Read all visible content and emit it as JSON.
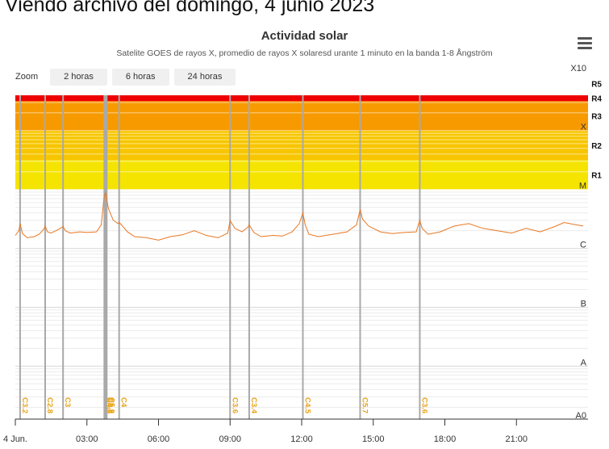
{
  "page": {
    "heading": "Viendo archivo del domingo, 4 junio 2023"
  },
  "toolbar": {
    "zoom_label": "Zoom",
    "zoom_options": [
      "2 horas",
      "6 horas",
      "24 horas"
    ],
    "menu_icon": "hamburger-menu-icon"
  },
  "chart_data": {
    "type": "line",
    "title": "Actividad solar",
    "subtitle": "Satelite GOES de rayos X, promedio de rayos X solaresd urante 1 minuto en la banda 1-8 Ångström",
    "xlabel": "",
    "ylabel": "",
    "x_unit": "hours UTC",
    "xlim": [
      0,
      24
    ],
    "x_ticks": [
      {
        "value": 0,
        "label": "4 Jun."
      },
      {
        "value": 3,
        "label": "03:00"
      },
      {
        "value": 6,
        "label": "06:00"
      },
      {
        "value": 9,
        "label": "09:00"
      },
      {
        "value": 12,
        "label": "12:00"
      },
      {
        "value": 15,
        "label": "15:00"
      },
      {
        "value": 18,
        "label": "18:00"
      },
      {
        "value": 21,
        "label": "21:00"
      }
    ],
    "y_scale": "log10 W/m²",
    "ylim": [
      -8.9,
      -3.4
    ],
    "class_labels": [
      {
        "label": "A0",
        "log": -8.9
      },
      {
        "label": "A",
        "log": -8
      },
      {
        "label": "B",
        "log": -7
      },
      {
        "label": "C",
        "log": -6
      },
      {
        "label": "M",
        "log": -5
      },
      {
        "label": "X",
        "log": -4
      },
      {
        "label": "X10",
        "log": -3
      }
    ],
    "radio_bands": [
      {
        "label": "R1",
        "from": -5.0,
        "to": -4.5,
        "color": "#f5e400"
      },
      {
        "label": "R2",
        "from": -4.5,
        "to": -4.0,
        "color": "#f7c600"
      },
      {
        "label": "R3",
        "from": -4.0,
        "to": -3.5,
        "color": "#f79a00"
      },
      {
        "label": "R4",
        "from": -3.5,
        "to": -3.0,
        "color": "#ee0000"
      },
      {
        "label": "R5",
        "from": -3.0,
        "to": -2.5,
        "color": "#c80000"
      }
    ],
    "flares": [
      {
        "time": 0.2,
        "label": "C3.2"
      },
      {
        "time": 1.25,
        "label": "C2.8"
      },
      {
        "time": 2.0,
        "label": "C3"
      },
      {
        "time": 3.73,
        "label": "C4.6"
      },
      {
        "time": 3.78,
        "label": "C8.8"
      },
      {
        "time": 3.83,
        "label": "C5.9"
      },
      {
        "time": 4.35,
        "label": "C4"
      },
      {
        "time": 9.0,
        "label": "C3.6"
      },
      {
        "time": 9.8,
        "label": "C3.4"
      },
      {
        "time": 12.05,
        "label": "C4.5"
      },
      {
        "time": 14.45,
        "label": "C5.7"
      },
      {
        "time": 16.95,
        "label": "C3.6"
      }
    ],
    "series": [
      {
        "name": "GOES 1-8 Å",
        "color": "#e87722",
        "x": [
          0,
          0.15,
          0.2,
          0.3,
          0.5,
          0.8,
          1.0,
          1.2,
          1.25,
          1.35,
          1.5,
          1.8,
          2.0,
          2.1,
          2.3,
          2.7,
          3.0,
          3.4,
          3.6,
          3.73,
          3.78,
          3.9,
          4.1,
          4.3,
          4.35,
          4.45,
          4.7,
          5.0,
          5.5,
          6.0,
          6.5,
          7.0,
          7.5,
          8.0,
          8.5,
          8.9,
          9.0,
          9.2,
          9.5,
          9.75,
          9.8,
          10.0,
          10.3,
          10.8,
          11.2,
          11.6,
          11.9,
          12.05,
          12.15,
          12.3,
          12.7,
          13.3,
          13.9,
          14.3,
          14.45,
          14.55,
          14.8,
          15.3,
          15.8,
          16.3,
          16.8,
          16.95,
          17.05,
          17.3,
          17.8,
          18.4,
          19.0,
          19.6,
          20.2,
          20.8,
          21.4,
          22.0,
          22.6,
          23.0,
          23.5,
          23.8
        ],
        "values": [
          -5.78,
          -5.7,
          -5.58,
          -5.75,
          -5.82,
          -5.8,
          -5.76,
          -5.67,
          -5.62,
          -5.72,
          -5.74,
          -5.68,
          -5.63,
          -5.7,
          -5.74,
          -5.72,
          -5.73,
          -5.72,
          -5.6,
          -5.1,
          -5.06,
          -5.32,
          -5.52,
          -5.58,
          -5.56,
          -5.6,
          -5.72,
          -5.8,
          -5.82,
          -5.86,
          -5.8,
          -5.77,
          -5.7,
          -5.78,
          -5.82,
          -5.74,
          -5.53,
          -5.66,
          -5.72,
          -5.64,
          -5.6,
          -5.73,
          -5.8,
          -5.78,
          -5.79,
          -5.72,
          -5.58,
          -5.4,
          -5.6,
          -5.76,
          -5.8,
          -5.76,
          -5.72,
          -5.6,
          -5.34,
          -5.5,
          -5.62,
          -5.72,
          -5.75,
          -5.73,
          -5.72,
          -5.52,
          -5.66,
          -5.76,
          -5.72,
          -5.62,
          -5.58,
          -5.66,
          -5.7,
          -5.74,
          -5.66,
          -5.72,
          -5.63,
          -5.56,
          -5.6,
          -5.62
        ]
      }
    ]
  }
}
